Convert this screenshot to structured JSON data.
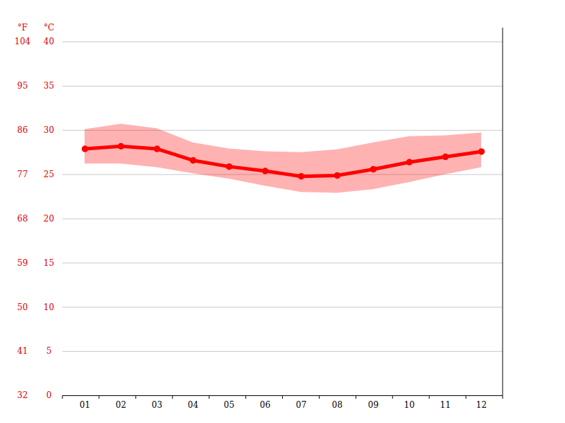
{
  "chart_data": {
    "type": "line",
    "categories": [
      "01",
      "02",
      "03",
      "04",
      "05",
      "06",
      "07",
      "08",
      "09",
      "10",
      "11",
      "12"
    ],
    "values": [
      27.9,
      28.2,
      27.9,
      26.6,
      25.9,
      25.4,
      24.8,
      24.9,
      25.6,
      26.4,
      27.0,
      27.6
    ],
    "range": {
      "min": [
        26.2,
        26.2,
        25.8,
        25.1,
        24.5,
        23.7,
        23.0,
        22.9,
        23.3,
        24.1,
        25.0,
        25.8
      ],
      "max": [
        30.1,
        30.7,
        30.2,
        28.6,
        27.9,
        27.6,
        27.5,
        27.8,
        28.6,
        29.3,
        29.4,
        29.7
      ]
    },
    "color": "#ff0000",
    "marker": "circle",
    "y_label": "°C",
    "ylim": [
      0,
      40
    ],
    "yticks": [
      0,
      5,
      10,
      15,
      20,
      25,
      30,
      35,
      40
    ],
    "y2_label": "°F",
    "y2lim": [
      32,
      104
    ],
    "y2ticks": [
      32,
      41,
      50,
      59,
      68,
      77,
      86,
      95,
      104
    ],
    "grid": true
  }
}
